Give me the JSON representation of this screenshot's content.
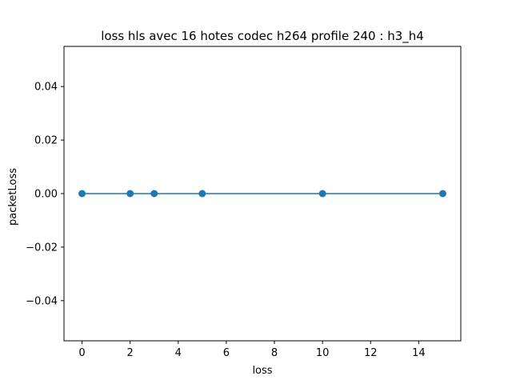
{
  "chart_data": {
    "type": "line",
    "title": "loss hls avec 16 hotes codec h264 profile 240 : h3_h4",
    "xlabel": "loss",
    "ylabel": "packetLoss",
    "xlim": [
      -0.75,
      15.75
    ],
    "ylim": [
      -0.055,
      0.055
    ],
    "x_ticks": [
      0,
      2,
      4,
      6,
      8,
      10,
      12,
      14
    ],
    "x_tick_labels": [
      "0",
      "2",
      "4",
      "6",
      "8",
      "10",
      "12",
      "14"
    ],
    "y_ticks": [
      -0.04,
      -0.02,
      0.0,
      0.02,
      0.04
    ],
    "y_tick_labels": [
      "−0.04",
      "−0.02",
      "0.00",
      "0.02",
      "0.04"
    ],
    "grid": false,
    "legend": false,
    "series": [
      {
        "color": "#1f77b4",
        "marker": "circle",
        "x": [
          0,
          2,
          3,
          5,
          10,
          15
        ],
        "y": [
          0,
          0,
          0,
          0,
          0,
          0
        ]
      }
    ]
  }
}
